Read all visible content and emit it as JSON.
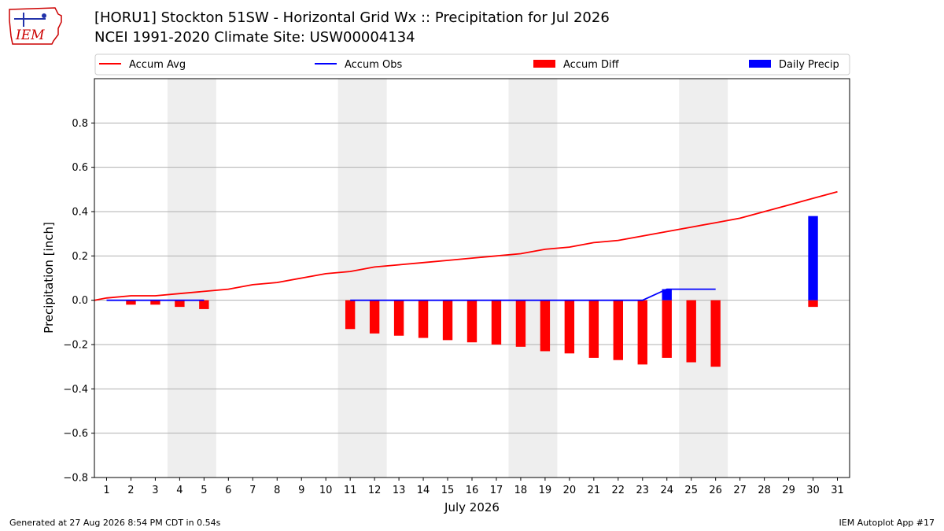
{
  "title": "[HORU1] Stockton 51SW - Horizontal Grid Wx :: Precipitation for Jul 2026",
  "subtitle": "NCEI 1991-2020 Climate Site: USW00004134",
  "logo_text": "IEM",
  "footer_left": "Generated at 27 Aug 2026 8:54 PM CDT in 0.54s",
  "footer_right": "IEM Autoplot App #17",
  "colors": {
    "accum_avg": "#ff0000",
    "accum_obs": "#0000ff",
    "accum_diff": "#ff0000",
    "daily_precip": "#0000ff",
    "weekend_shade": "#eeeeee",
    "grid": "#b0b0b0",
    "logo": "#cc0000"
  },
  "chart_data": {
    "type": "bar",
    "xlabel": "July 2026",
    "ylabel": "Precipitation [inch]",
    "ylim": [
      -0.8,
      1.0
    ],
    "yticks": [
      -0.8,
      -0.6,
      -0.4,
      -0.2,
      0.0,
      0.2,
      0.4,
      0.6,
      0.8
    ],
    "ytick_labels": [
      "−0.8",
      "−0.6",
      "−0.4",
      "−0.2",
      "0.0",
      "0.2",
      "0.4",
      "0.6",
      "0.8"
    ],
    "x_labels": [
      "1",
      "2",
      "3",
      "4",
      "5",
      "6",
      "7",
      "8",
      "9",
      "10",
      "11",
      "12",
      "13",
      "14",
      "15",
      "16",
      "17",
      "18",
      "19",
      "20",
      "21",
      "22",
      "23",
      "24",
      "25",
      "26",
      "27",
      "28",
      "29",
      "30",
      "31"
    ],
    "grid": "horizontal",
    "legend_position": "top",
    "shaded_days": [
      [
        4,
        5
      ],
      [
        11,
        12
      ],
      [
        18,
        19
      ],
      [
        25,
        26
      ]
    ],
    "legend": [
      {
        "label": "Accum Avg",
        "kind": "line",
        "color": "#ff0000"
      },
      {
        "label": "Accum Obs",
        "kind": "line",
        "color": "#0000ff"
      },
      {
        "label": "Accum Diff",
        "kind": "bar",
        "color": "#ff0000"
      },
      {
        "label": "Daily Precip",
        "kind": "bar",
        "color": "#0000ff"
      }
    ],
    "accum_avg": {
      "days": [
        0.5,
        1,
        2,
        3,
        4,
        5,
        6,
        7,
        8,
        9,
        10,
        11,
        12,
        13,
        14,
        15,
        16,
        17,
        18,
        19,
        20,
        21,
        22,
        23,
        24,
        25,
        26,
        27,
        28,
        29,
        30,
        31
      ],
      "values": [
        0.0,
        0.01,
        0.02,
        0.02,
        0.03,
        0.04,
        0.05,
        0.07,
        0.08,
        0.1,
        0.12,
        0.13,
        0.15,
        0.16,
        0.17,
        0.18,
        0.19,
        0.2,
        0.21,
        0.23,
        0.24,
        0.26,
        0.27,
        0.29,
        0.31,
        0.33,
        0.35,
        0.37,
        0.4,
        0.43,
        0.46,
        0.49
      ]
    },
    "accum_obs": {
      "segments": [
        {
          "days": [
            1,
            2,
            3,
            4,
            5
          ],
          "values": [
            0,
            0,
            0,
            0,
            0
          ]
        },
        {
          "days": [
            11,
            12,
            13,
            14,
            15,
            16,
            17,
            18,
            19,
            20,
            21,
            22,
            23,
            24,
            25,
            26
          ],
          "values": [
            0,
            0,
            0,
            0,
            0,
            0,
            0,
            0,
            0,
            0,
            0,
            0,
            0,
            0.05,
            0.05,
            0.05
          ]
        }
      ]
    },
    "accum_diff": {
      "days": [
        2,
        3,
        4,
        5,
        11,
        12,
        13,
        14,
        15,
        16,
        17,
        18,
        19,
        20,
        21,
        22,
        23,
        24,
        25,
        26,
        30
      ],
      "values": [
        -0.02,
        -0.02,
        -0.03,
        -0.04,
        -0.13,
        -0.15,
        -0.16,
        -0.17,
        -0.18,
        -0.19,
        -0.2,
        -0.21,
        -0.23,
        -0.24,
        -0.26,
        -0.27,
        -0.29,
        -0.26,
        -0.28,
        -0.3,
        -0.03
      ]
    },
    "daily_precip": {
      "days": [
        24,
        30
      ],
      "values": [
        0.05,
        0.38
      ]
    }
  }
}
